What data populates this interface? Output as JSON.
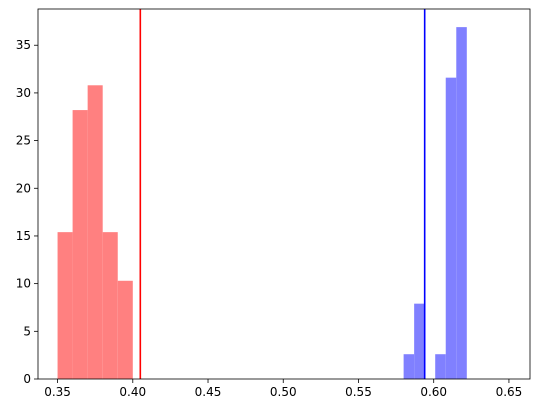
{
  "chart_data": {
    "type": "histogram",
    "title": "",
    "xlabel": "",
    "ylabel": "",
    "xlim": [
      0.337,
      0.664
    ],
    "ylim": [
      0,
      38.8
    ],
    "grid": false,
    "legend": "none",
    "xticks": [
      "0.35",
      "0.40",
      "0.45",
      "0.50",
      "0.55",
      "0.60",
      "0.65"
    ],
    "xtick_values": [
      0.35,
      0.4,
      0.45,
      0.5,
      0.55,
      0.6,
      0.65
    ],
    "yticks": [
      "0",
      "5",
      "10",
      "15",
      "20",
      "25",
      "30",
      "35"
    ],
    "ytick_values": [
      0,
      5,
      10,
      15,
      20,
      25,
      30,
      35
    ],
    "series": [
      {
        "color": "#ff8080",
        "bins": [
          {
            "x0": 0.35,
            "x1": 0.36,
            "count": 15.4
          },
          {
            "x0": 0.36,
            "x1": 0.37,
            "count": 28.2
          },
          {
            "x0": 0.37,
            "x1": 0.38,
            "count": 30.8
          },
          {
            "x0": 0.38,
            "x1": 0.39,
            "count": 15.4
          },
          {
            "x0": 0.39,
            "x1": 0.4,
            "count": 10.3
          }
        ]
      },
      {
        "color": "#8080ff",
        "bins": [
          {
            "x0": 0.58,
            "x1": 0.587,
            "count": 2.6
          },
          {
            "x0": 0.587,
            "x1": 0.594,
            "count": 7.9
          },
          {
            "x0": 0.594,
            "x1": 0.601,
            "count": 0
          },
          {
            "x0": 0.601,
            "x1": 0.608,
            "count": 2.6
          },
          {
            "x0": 0.608,
            "x1": 0.615,
            "count": 31.6
          },
          {
            "x0": 0.615,
            "x1": 0.622,
            "count": 36.9
          },
          {
            "x0": 0.622,
            "x1": 0.629,
            "count": 0
          },
          {
            "x0": 0.629,
            "x1": 0.632,
            "count": 0
          }
        ]
      }
    ],
    "vlines": [
      {
        "x": 0.405,
        "color": "#ff0000"
      },
      {
        "x": 0.594,
        "color": "#0000ff"
      }
    ]
  }
}
